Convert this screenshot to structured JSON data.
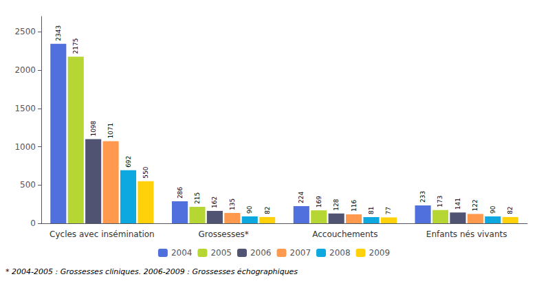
{
  "chart_data": {
    "type": "bar",
    "categories": [
      "Cycles avec insémination",
      "Grossesses*",
      "Accouchements",
      "Enfants nés vivants"
    ],
    "series": [
      {
        "name": "2004",
        "values": [
          2343,
          286,
          224,
          233
        ]
      },
      {
        "name": "2005",
        "values": [
          2175,
          215,
          169,
          173
        ]
      },
      {
        "name": "2006",
        "values": [
          1098,
          162,
          128,
          141
        ]
      },
      {
        "name": "2007",
        "values": [
          1071,
          135,
          116,
          122
        ]
      },
      {
        "name": "2008",
        "values": [
          692,
          90,
          81,
          90
        ]
      },
      {
        "name": "2009",
        "values": [
          550,
          82,
          77,
          82
        ]
      }
    ],
    "ylim": [
      0,
      2700
    ],
    "yticks": [
      0,
      500,
      1000,
      1500,
      2000,
      2500
    ],
    "grid": false,
    "legend": "bottom",
    "data_labels": true,
    "annotations": [
      "* 2004-2005 : Grossesses cliniques. 2006-2009 : Grossesses échographiques"
    ]
  }
}
